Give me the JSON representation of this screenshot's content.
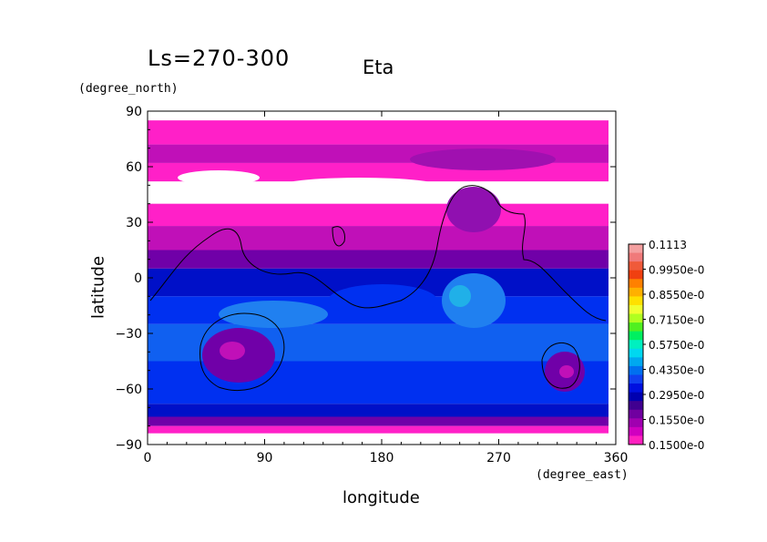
{
  "chart_data": {
    "type": "heatmap",
    "title": "Eta",
    "subtitle": "Ls=270-300",
    "xlabel": "longitude",
    "xlabel_unit": "(degree_east)",
    "ylabel": "latitude",
    "ylabel_unit": "(degree_north)",
    "xlim": [
      0,
      360
    ],
    "ylim": [
      -90,
      90
    ],
    "x_ticks": [
      0,
      90,
      180,
      270,
      360
    ],
    "y_ticks": [
      90,
      60,
      30,
      0,
      -30,
      -60,
      -90
    ],
    "colorbar": {
      "labels": [
        "0.1113",
        "0.9950e-0",
        "0.8550e-0",
        "0.7150e-0",
        "0.5750e-0",
        "0.4350e-0",
        "0.2950e-0",
        "0.1550e-0",
        "0.1500e-0"
      ],
      "colors": [
        "#f4a0a0",
        "#f07a7a",
        "#f05a3a",
        "#f04010",
        "#ff8000",
        "#ffb000",
        "#ffe000",
        "#f0ff30",
        "#b0ff20",
        "#50f020",
        "#00f060",
        "#00f0c0",
        "#00d8f0",
        "#00a8f0",
        "#0070f0",
        "#1040f0",
        "#0010e0",
        "#0000b0",
        "#400090",
        "#7000a0",
        "#a000b0",
        "#d000c0",
        "#ff20c0"
      ]
    },
    "bands": [
      {
        "lat": [
          90,
          85
        ],
        "level": "none"
      },
      {
        "lat": [
          85,
          72
        ],
        "level": "magenta"
      },
      {
        "lat": [
          72,
          62
        ],
        "level": "purple-light"
      },
      {
        "lat": [
          62,
          52
        ],
        "level": "magenta"
      },
      {
        "lat": [
          52,
          40
        ],
        "level": "none"
      },
      {
        "lat": [
          40,
          28
        ],
        "level": "magenta"
      },
      {
        "lat": [
          28,
          15
        ],
        "level": "purple-light"
      },
      {
        "lat": [
          15,
          5
        ],
        "level": "purple"
      },
      {
        "lat": [
          5,
          -10
        ],
        "level": "blue-dark"
      },
      {
        "lat": [
          -10,
          -25
        ],
        "level": "blue"
      },
      {
        "lat": [
          -25,
          -45
        ],
        "level": "blue-mid"
      },
      {
        "lat": [
          -45,
          -68
        ],
        "level": "blue"
      },
      {
        "lat": [
          -68,
          -75
        ],
        "level": "blue-dark"
      },
      {
        "lat": [
          -75,
          -80
        ],
        "level": "purple"
      },
      {
        "lat": [
          -80,
          -84
        ],
        "level": "magenta"
      },
      {
        "lat": [
          -84,
          -90
        ],
        "level": "none"
      }
    ]
  }
}
